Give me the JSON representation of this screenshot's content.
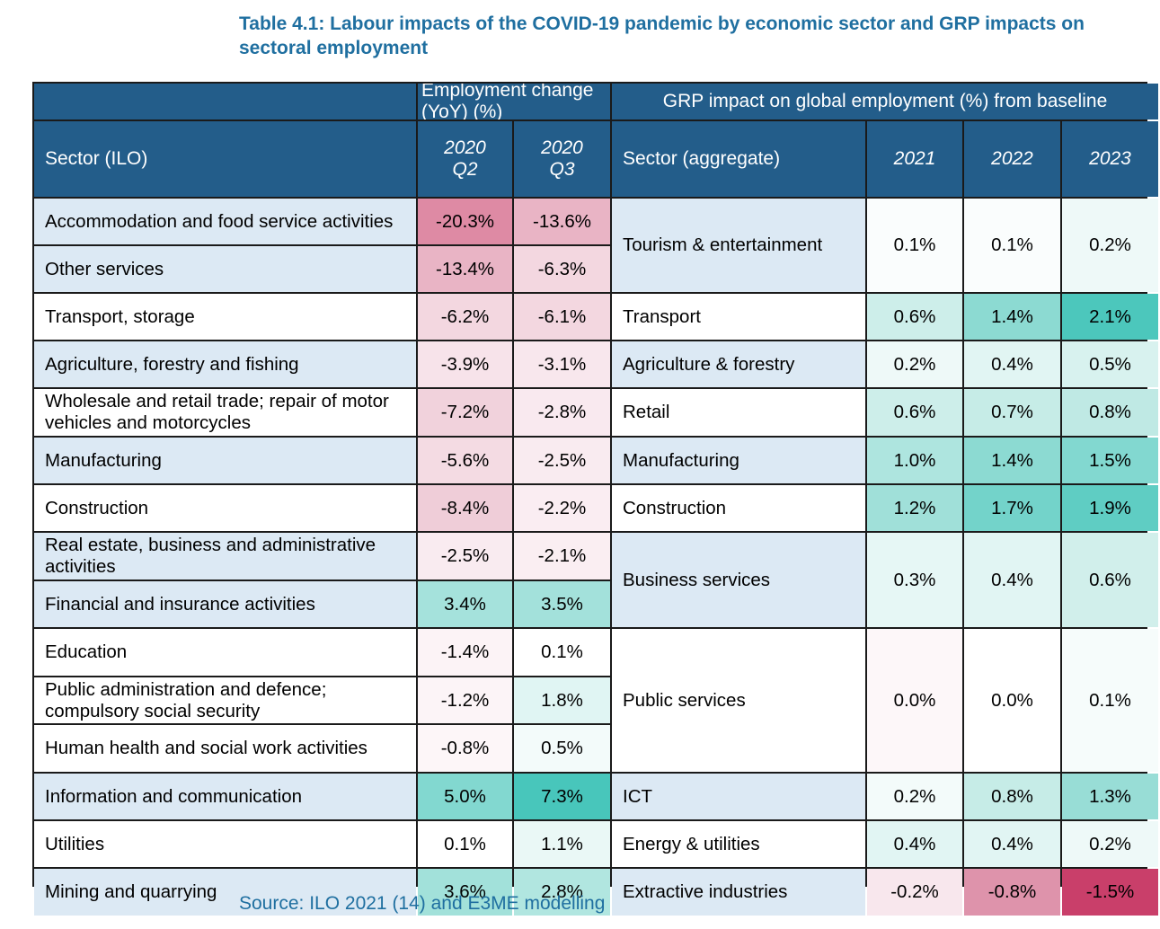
{
  "title": "Table 4.1: Labour impacts of the COVID-19 pandemic by economic sector and GRP impacts on sectoral employment",
  "header": {
    "group_left": "Employment change (YoY) (%)",
    "group_right": "GRP impact on global employment (%) from baseline",
    "sector_ilo": "Sector (ILO)",
    "q2_line1": "2020",
    "q2_line2": "Q2",
    "q3_line1": "2020",
    "q3_line2": "Q3",
    "sector_agg": "Sector (aggregate)",
    "y2021": "2021",
    "y2022": "2022",
    "y2023": "2023"
  },
  "ilo_rows": [
    {
      "sector": "Accommodation and food service activities",
      "q2": "-20.3%",
      "q3": "-13.6%"
    },
    {
      "sector": "Other services",
      "q2": "-13.4%",
      "q3": "-6.3%"
    },
    {
      "sector": "Transport, storage",
      "q2": "-6.2%",
      "q3": "-6.1%"
    },
    {
      "sector": "Agriculture, forestry and fishing",
      "q2": "-3.9%",
      "q3": "-3.1%"
    },
    {
      "sector": "Wholesale and retail trade; repair of motor vehicles and motorcycles",
      "q2": "-7.2%",
      "q3": "-2.8%"
    },
    {
      "sector": "Manufacturing",
      "q2": "-5.6%",
      "q3": "-2.5%"
    },
    {
      "sector": "Construction",
      "q2": "-8.4%",
      "q3": "-2.2%"
    },
    {
      "sector": "Real estate, business and administrative activities",
      "q2": "-2.5%",
      "q3": "-2.1%"
    },
    {
      "sector": "Financial and insurance activities",
      "q2": "3.4%",
      "q3": "3.5%"
    },
    {
      "sector": "Education",
      "q2": "-1.4%",
      "q3": "0.1%"
    },
    {
      "sector": "Public administration and defence; compulsory social security",
      "q2": "-1.2%",
      "q3": "1.8%"
    },
    {
      "sector": "Human health and social work activities",
      "q2": "-0.8%",
      "q3": "0.5%"
    },
    {
      "sector": "Information and communication",
      "q2": "5.0%",
      "q3": "7.3%"
    },
    {
      "sector": "Utilities",
      "q2": "0.1%",
      "q3": "1.1%"
    },
    {
      "sector": "Mining and quarrying",
      "q2": "3.6%",
      "q3": "2.8%"
    }
  ],
  "agg_rows": [
    {
      "sector": "Tourism & entertainment",
      "y2021": "0.1%",
      "y2022": "0.1%",
      "y2023": "0.2%"
    },
    {
      "sector": "Transport",
      "y2021": "0.6%",
      "y2022": "1.4%",
      "y2023": "2.1%"
    },
    {
      "sector": "Agriculture & forestry",
      "y2021": "0.2%",
      "y2022": "0.4%",
      "y2023": "0.5%"
    },
    {
      "sector": "Retail",
      "y2021": "0.6%",
      "y2022": "0.7%",
      "y2023": "0.8%"
    },
    {
      "sector": "Manufacturing",
      "y2021": "1.0%",
      "y2022": "1.4%",
      "y2023": "1.5%"
    },
    {
      "sector": "Construction",
      "y2021": "1.2%",
      "y2022": "1.7%",
      "y2023": "1.9%"
    },
    {
      "sector": "Business services",
      "y2021": "0.3%",
      "y2022": "0.4%",
      "y2023": "0.6%"
    },
    {
      "sector": "Public services",
      "y2021": "0.0%",
      "y2022": "0.0%",
      "y2023": "0.1%"
    },
    {
      "sector": "ICT",
      "y2021": "0.2%",
      "y2022": "0.8%",
      "y2023": "1.3%"
    },
    {
      "sector": "Energy & utilities",
      "y2021": "0.4%",
      "y2022": "0.4%",
      "y2023": "0.2%"
    },
    {
      "sector": "Extractive industries",
      "y2021": "-0.2%",
      "y2022": "-0.8%",
      "y2023": "-1.5%"
    }
  ],
  "colors": {
    "header_bg": "#235d8a",
    "title_text": "#1f6fa0",
    "label_shade": "#dce9f4"
  },
  "source": "Source: ILO 2021 (14) and E3ME modelling"
}
